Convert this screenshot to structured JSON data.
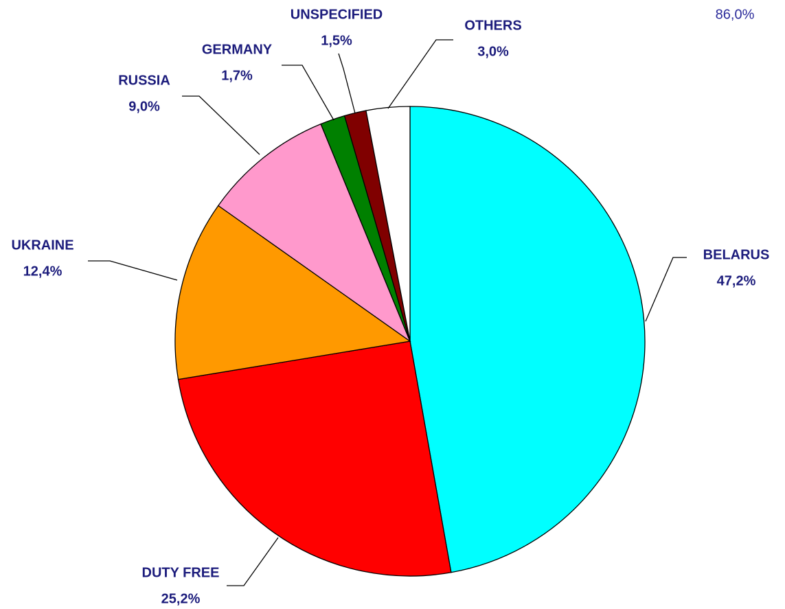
{
  "chart_data": {
    "type": "pie",
    "categories": [
      "BELARUS",
      "DUTY FREE",
      "UKRAINE",
      "RUSSIA",
      "GERMANY",
      "UNSPECIFIED",
      "OTHERS"
    ],
    "values": [
      47.2,
      25.2,
      12.4,
      9.0,
      1.7,
      1.5,
      3.0
    ],
    "value_labels": [
      "47,2%",
      "25,2%",
      "12,4%",
      "9,0%",
      "1,7%",
      "1,5%",
      "3,0%"
    ],
    "colors": [
      "#00ffff",
      "#ff0000",
      "#ff9900",
      "#ff99cc",
      "#008000",
      "#800000",
      "#ffffff"
    ],
    "annotation": "86,0%"
  }
}
